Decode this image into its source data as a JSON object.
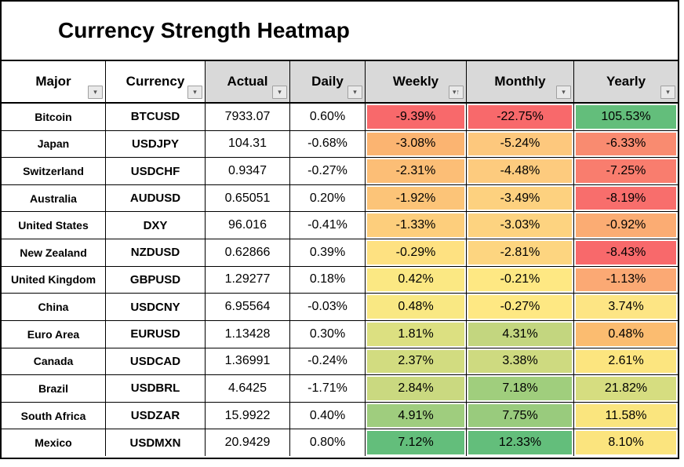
{
  "title": "Currency Strength Heatmap",
  "icons": {
    "filter_dropdown": "▾",
    "sort_ascending": "↑"
  },
  "colors": {
    "scale_low": "#F8696B",
    "scale_mid": "#FFEB84",
    "scale_high": "#63BE7B",
    "header_bg": "#D9D9D9",
    "grid_line": "#000000"
  },
  "table": {
    "columns": [
      {
        "label": "Major",
        "header_bg": "white",
        "sorted": false
      },
      {
        "label": "Currency",
        "header_bg": "white",
        "sorted": false
      },
      {
        "label": "Actual",
        "header_bg": "gray",
        "sorted": false
      },
      {
        "label": "Daily",
        "header_bg": "gray",
        "sorted": false
      },
      {
        "label": "Weekly",
        "header_bg": "gray",
        "sorted": true
      },
      {
        "label": "Monthly",
        "header_bg": "gray",
        "sorted": false
      },
      {
        "label": "Yearly",
        "header_bg": "gray",
        "sorted": false
      }
    ],
    "rows": [
      {
        "major": "Bitcoin",
        "currency": "BTCUSD",
        "actual": "7933.07",
        "daily": "0.60%",
        "weekly": {
          "value": "-9.39%",
          "bg": "#F8696B"
        },
        "monthly": {
          "value": "-22.75%",
          "bg": "#F8696B"
        },
        "yearly": {
          "value": "105.53%",
          "bg": "#63BE7B"
        }
      },
      {
        "major": "Japan",
        "currency": "USDJPY",
        "actual": "104.31",
        "daily": "-0.68%",
        "weekly": {
          "value": "-3.08%",
          "bg": "#FBB471"
        },
        "monthly": {
          "value": "-5.24%",
          "bg": "#FDC87D"
        },
        "yearly": {
          "value": "-6.33%",
          "bg": "#F98B70"
        }
      },
      {
        "major": "Switzerland",
        "currency": "USDCHF",
        "actual": "0.9347",
        "daily": "-0.27%",
        "weekly": {
          "value": "-2.31%",
          "bg": "#FCBE76"
        },
        "monthly": {
          "value": "-4.48%",
          "bg": "#FDCB7E"
        },
        "yearly": {
          "value": "-7.25%",
          "bg": "#F97D6E"
        }
      },
      {
        "major": "Australia",
        "currency": "AUDUSD",
        "actual": "0.65051",
        "daily": "0.20%",
        "weekly": {
          "value": "-1.92%",
          "bg": "#FCC478"
        },
        "monthly": {
          "value": "-3.49%",
          "bg": "#FDD17F"
        },
        "yearly": {
          "value": "-8.19%",
          "bg": "#F86E6C"
        }
      },
      {
        "major": "United States",
        "currency": "DXY",
        "actual": "96.016",
        "daily": "-0.41%",
        "weekly": {
          "value": "-1.33%",
          "bg": "#FDCE7C"
        },
        "monthly": {
          "value": "-3.03%",
          "bg": "#FDD380"
        },
        "yearly": {
          "value": "-0.92%",
          "bg": "#FBAC73"
        }
      },
      {
        "major": "New Zealand",
        "currency": "NZDUSD",
        "actual": "0.62866",
        "daily": "0.39%",
        "weekly": {
          "value": "-0.29%",
          "bg": "#FEE181"
        },
        "monthly": {
          "value": "-2.81%",
          "bg": "#FDD580"
        },
        "yearly": {
          "value": "-8.43%",
          "bg": "#F8696B"
        }
      },
      {
        "major": "United Kingdom",
        "currency": "GBPUSD",
        "actual": "1.29277",
        "daily": "0.18%",
        "weekly": {
          "value": "0.42%",
          "bg": "#FBE883"
        },
        "monthly": {
          "value": "-0.21%",
          "bg": "#FEE883"
        },
        "yearly": {
          "value": "-1.13%",
          "bg": "#FBA974"
        }
      },
      {
        "major": "China",
        "currency": "USDCNY",
        "actual": "6.95564",
        "daily": "-0.03%",
        "weekly": {
          "value": "0.48%",
          "bg": "#F9E883"
        },
        "monthly": {
          "value": "-0.27%",
          "bg": "#FEE883"
        },
        "yearly": {
          "value": "3.74%",
          "bg": "#FDE584"
        }
      },
      {
        "major": "Euro Area",
        "currency": "EURUSD",
        "actual": "1.13428",
        "daily": "0.30%",
        "weekly": {
          "value": "1.81%",
          "bg": "#DCE081"
        },
        "monthly": {
          "value": "4.31%",
          "bg": "#C3D67F"
        },
        "yearly": {
          "value": "0.48%",
          "bg": "#FBBC70"
        }
      },
      {
        "major": "Canada",
        "currency": "USDCAD",
        "actual": "1.36991",
        "daily": "-0.24%",
        "weekly": {
          "value": "2.37%",
          "bg": "#D2DC80"
        },
        "monthly": {
          "value": "3.38%",
          "bg": "#CEDA80"
        },
        "yearly": {
          "value": "2.61%",
          "bg": "#FCE57F"
        }
      },
      {
        "major": "Brazil",
        "currency": "USDBRL",
        "actual": "4.6425",
        "daily": "-1.71%",
        "weekly": {
          "value": "2.84%",
          "bg": "#CAD980"
        },
        "monthly": {
          "value": "7.18%",
          "bg": "#A0CE7D"
        },
        "yearly": {
          "value": "21.82%",
          "bg": "#D6DD80"
        }
      },
      {
        "major": "South Africa",
        "currency": "USDZAR",
        "actual": "15.9922",
        "daily": "0.40%",
        "weekly": {
          "value": "4.91%",
          "bg": "#9FCD7E"
        },
        "monthly": {
          "value": "7.75%",
          "bg": "#99CB7D"
        },
        "yearly": {
          "value": "11.58%",
          "bg": "#FAE57E"
        }
      },
      {
        "major": "Mexico",
        "currency": "USDMXN",
        "actual": "20.9429",
        "daily": "0.80%",
        "weekly": {
          "value": "7.12%",
          "bg": "#63BE7B"
        },
        "monthly": {
          "value": "12.33%",
          "bg": "#63BE7B"
        },
        "yearly": {
          "value": "8.10%",
          "bg": "#FBE47E"
        }
      }
    ]
  },
  "chart_data": {
    "type": "heatmap",
    "title": "Currency Strength Heatmap",
    "columns": [
      "Major",
      "Currency",
      "Actual",
      "Daily",
      "Weekly",
      "Monthly",
      "Yearly"
    ],
    "categories": [
      "Bitcoin",
      "Japan",
      "Switzerland",
      "Australia",
      "United States",
      "New Zealand",
      "United Kingdom",
      "China",
      "Euro Area",
      "Canada",
      "Brazil",
      "South Africa",
      "Mexico"
    ],
    "tickers": [
      "BTCUSD",
      "USDJPY",
      "USDCHF",
      "AUDUSD",
      "DXY",
      "NZDUSD",
      "GBPUSD",
      "USDCNY",
      "EURUSD",
      "USDCAD",
      "USDBRL",
      "USDZAR",
      "USDMXN"
    ],
    "actual": [
      7933.07,
      104.31,
      0.9347,
      0.65051,
      96.016,
      0.62866,
      1.29277,
      6.95564,
      1.13428,
      1.36991,
      4.6425,
      15.9922,
      20.9429
    ],
    "series": [
      {
        "name": "Daily %",
        "values": [
          0.6,
          -0.68,
          -0.27,
          0.2,
          -0.41,
          0.39,
          0.18,
          -0.03,
          0.3,
          -0.24,
          -1.71,
          0.4,
          0.8
        ]
      },
      {
        "name": "Weekly %",
        "values": [
          -9.39,
          -3.08,
          -2.31,
          -1.92,
          -1.33,
          -0.29,
          0.42,
          0.48,
          1.81,
          2.37,
          2.84,
          4.91,
          7.12
        ]
      },
      {
        "name": "Monthly %",
        "values": [
          -22.75,
          -5.24,
          -4.48,
          -3.49,
          -3.03,
          -2.81,
          -0.21,
          -0.27,
          4.31,
          3.38,
          7.18,
          7.75,
          12.33
        ]
      },
      {
        "name": "Yearly %",
        "values": [
          105.53,
          -6.33,
          -7.25,
          -8.19,
          -0.92,
          -8.43,
          -1.13,
          3.74,
          0.48,
          2.61,
          21.82,
          11.58,
          8.1
        ]
      }
    ],
    "heat_columns": [
      "Weekly",
      "Monthly",
      "Yearly"
    ],
    "color_scale": {
      "low": "#F8696B",
      "mid": "#FFEB84",
      "high": "#63BE7B"
    },
    "sorted_by": "Weekly ascending",
    "legend_position": "none",
    "grid": true
  }
}
